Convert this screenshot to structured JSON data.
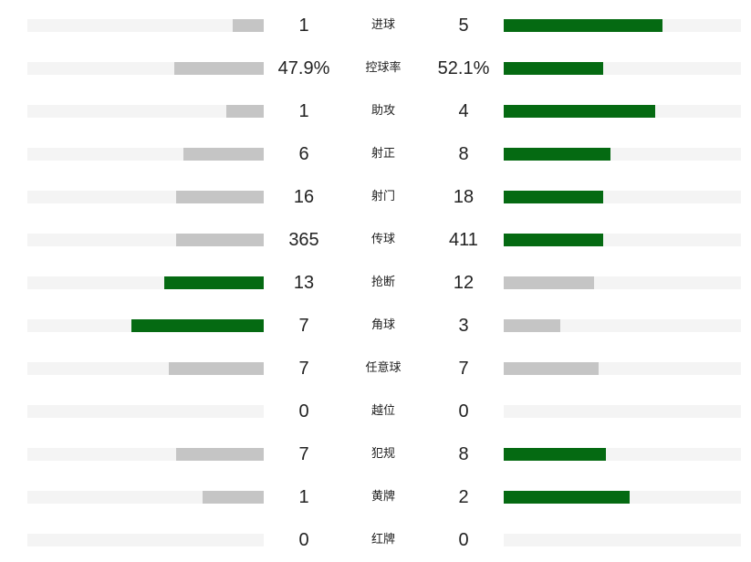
{
  "colors": {
    "win": "#056a12",
    "lose": "#c5c5c5",
    "track": "#f4f4f4"
  },
  "stats": [
    {
      "label": "进球",
      "home": "1",
      "away": "5",
      "home_ratio": 0.13,
      "away_ratio": 0.67,
      "leader": "away"
    },
    {
      "label": "控球率",
      "home": "47.9%",
      "away": "52.1%",
      "home_ratio": 0.38,
      "away_ratio": 0.42,
      "leader": "away"
    },
    {
      "label": "助攻",
      "home": "1",
      "away": "4",
      "home_ratio": 0.16,
      "away_ratio": 0.64,
      "leader": "away"
    },
    {
      "label": "射正",
      "home": "6",
      "away": "8",
      "home_ratio": 0.34,
      "away_ratio": 0.45,
      "leader": "away"
    },
    {
      "label": "射门",
      "home": "16",
      "away": "18",
      "home_ratio": 0.37,
      "away_ratio": 0.42,
      "leader": "away"
    },
    {
      "label": "传球",
      "home": "365",
      "away": "411",
      "home_ratio": 0.37,
      "away_ratio": 0.42,
      "leader": "away"
    },
    {
      "label": "抢断",
      "home": "13",
      "away": "12",
      "home_ratio": 0.42,
      "away_ratio": 0.38,
      "leader": "home"
    },
    {
      "label": "角球",
      "home": "7",
      "away": "3",
      "home_ratio": 0.56,
      "away_ratio": 0.24,
      "leader": "home"
    },
    {
      "label": "任意球",
      "home": "7",
      "away": "7",
      "home_ratio": 0.4,
      "away_ratio": 0.4,
      "leader": "none"
    },
    {
      "label": "越位",
      "home": "0",
      "away": "0",
      "home_ratio": 0,
      "away_ratio": 0,
      "leader": "none"
    },
    {
      "label": "犯规",
      "home": "7",
      "away": "8",
      "home_ratio": 0.37,
      "away_ratio": 0.43,
      "leader": "away"
    },
    {
      "label": "黄牌",
      "home": "1",
      "away": "2",
      "home_ratio": 0.26,
      "away_ratio": 0.53,
      "leader": "away"
    },
    {
      "label": "红牌",
      "home": "0",
      "away": "0",
      "home_ratio": 0,
      "away_ratio": 0,
      "leader": "none"
    }
  ]
}
